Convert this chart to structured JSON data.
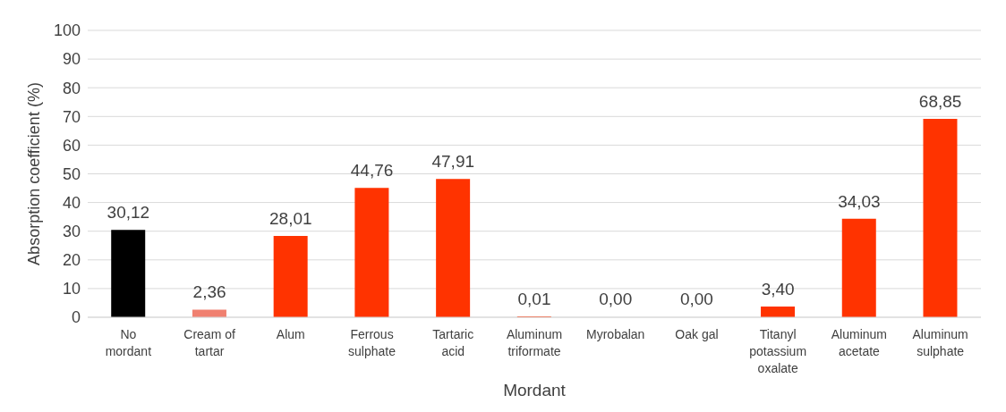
{
  "chart_data": {
    "type": "bar",
    "xlabel": "Mordant",
    "ylabel": "Absorption coefficient (%)",
    "categories": [
      "No mordant",
      "Cream of tartar",
      "Alum",
      "Ferrous sulphate",
      "Tartaric acid",
      "Aluminum triformate",
      "Myrobalan",
      "Oak gal",
      "Titanyl potassium oxalate",
      "Aluminum acetate",
      "Aluminum sulphate"
    ],
    "values": [
      30.12,
      2.36,
      28.01,
      44.76,
      47.91,
      0.01,
      0,
      0,
      3.4,
      34.03,
      68.85
    ],
    "value_labels": [
      "30,12",
      "2,36",
      "28,01",
      "44,76",
      "47,91",
      "0,01",
      "0,00",
      "0,00",
      "3,40",
      "34,03",
      "68,85"
    ],
    "colors": [
      "#000000",
      "#f08070",
      "#ff3300",
      "#ff3300",
      "#ff3300",
      "#ff3300",
      "#ff3300",
      "#ff3300",
      "#ff3300",
      "#ff3300",
      "#ff3300"
    ],
    "ylim": [
      0,
      100
    ],
    "yticks": [
      0,
      10,
      20,
      30,
      40,
      50,
      60,
      70,
      80,
      90,
      100
    ],
    "grid": "y"
  }
}
